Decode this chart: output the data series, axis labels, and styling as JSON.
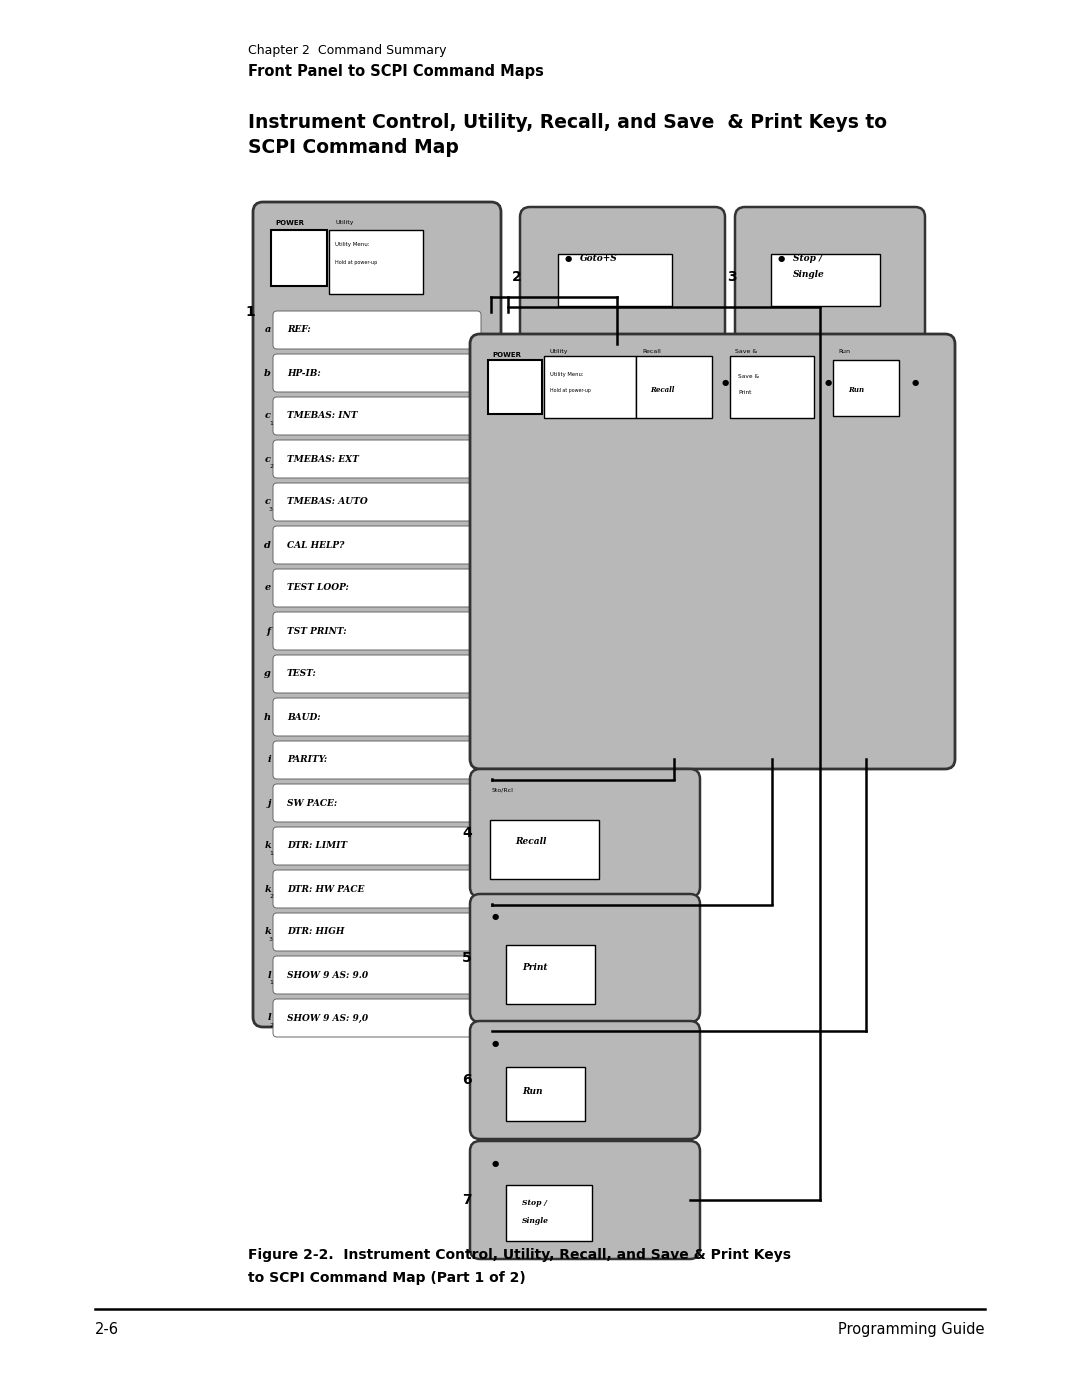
{
  "page_width": 10.8,
  "page_height": 13.97,
  "bg_color": "#ffffff",
  "header_line1": "Chapter 2  Command Summary",
  "header_line2": "Front Panel to SCPI Command Maps",
  "section_title_line1": "Instrument Control, Utility, Recall, and Save  & Print Keys to",
  "section_title_line2": "SCPI Command Map",
  "figure_caption_line1": "Figure 2-2.  Instrument Control, Utility, Recall, and Save & Print Keys",
  "figure_caption_line2": "to SCPI Command Map (Part 1 of 2)",
  "footer_left": "2-6",
  "footer_right": "Programming Guide",
  "stipple_color": "#b8b8b8",
  "stipple_dark": "#a0a0a0",
  "box_white": "#ffffff",
  "line_color": "#000000",
  "menu_items": [
    {
      "label": "a",
      "sub": "",
      "text": "REF:"
    },
    {
      "label": "b",
      "sub": "",
      "text": "HP-IB:"
    },
    {
      "label": "c",
      "sub": "1",
      "text": "TMEBAS: INT"
    },
    {
      "label": "c",
      "sub": "2",
      "text": "TMEBAS: EXT"
    },
    {
      "label": "c",
      "sub": "3",
      "text": "TMEBAS: AUTO"
    },
    {
      "label": "d",
      "sub": "",
      "text": "CAL HELP?"
    },
    {
      "label": "e",
      "sub": "",
      "text": "TEST LOOP:"
    },
    {
      "label": "f",
      "sub": "",
      "text": "TST PRINT:"
    },
    {
      "label": "g",
      "sub": "",
      "text": "TEST:"
    },
    {
      "label": "h",
      "sub": "",
      "text": "BAUD:"
    },
    {
      "label": "i",
      "sub": "",
      "text": "PARITY:"
    },
    {
      "label": "j",
      "sub": "",
      "text": "SW PACE:"
    },
    {
      "label": "k",
      "sub": "1",
      "text": "DTR: LIMIT"
    },
    {
      "label": "k",
      "sub": "2",
      "text": "DTR: HW PACE"
    },
    {
      "label": "k",
      "sub": "3",
      "text": "DTR: HIGH"
    },
    {
      "label": "l",
      "sub": "1",
      "text": "SHOW 9 AS: 9.0"
    },
    {
      "label": "l",
      "sub": "2",
      "text": "SHOW 9 AS: 9,0"
    }
  ]
}
